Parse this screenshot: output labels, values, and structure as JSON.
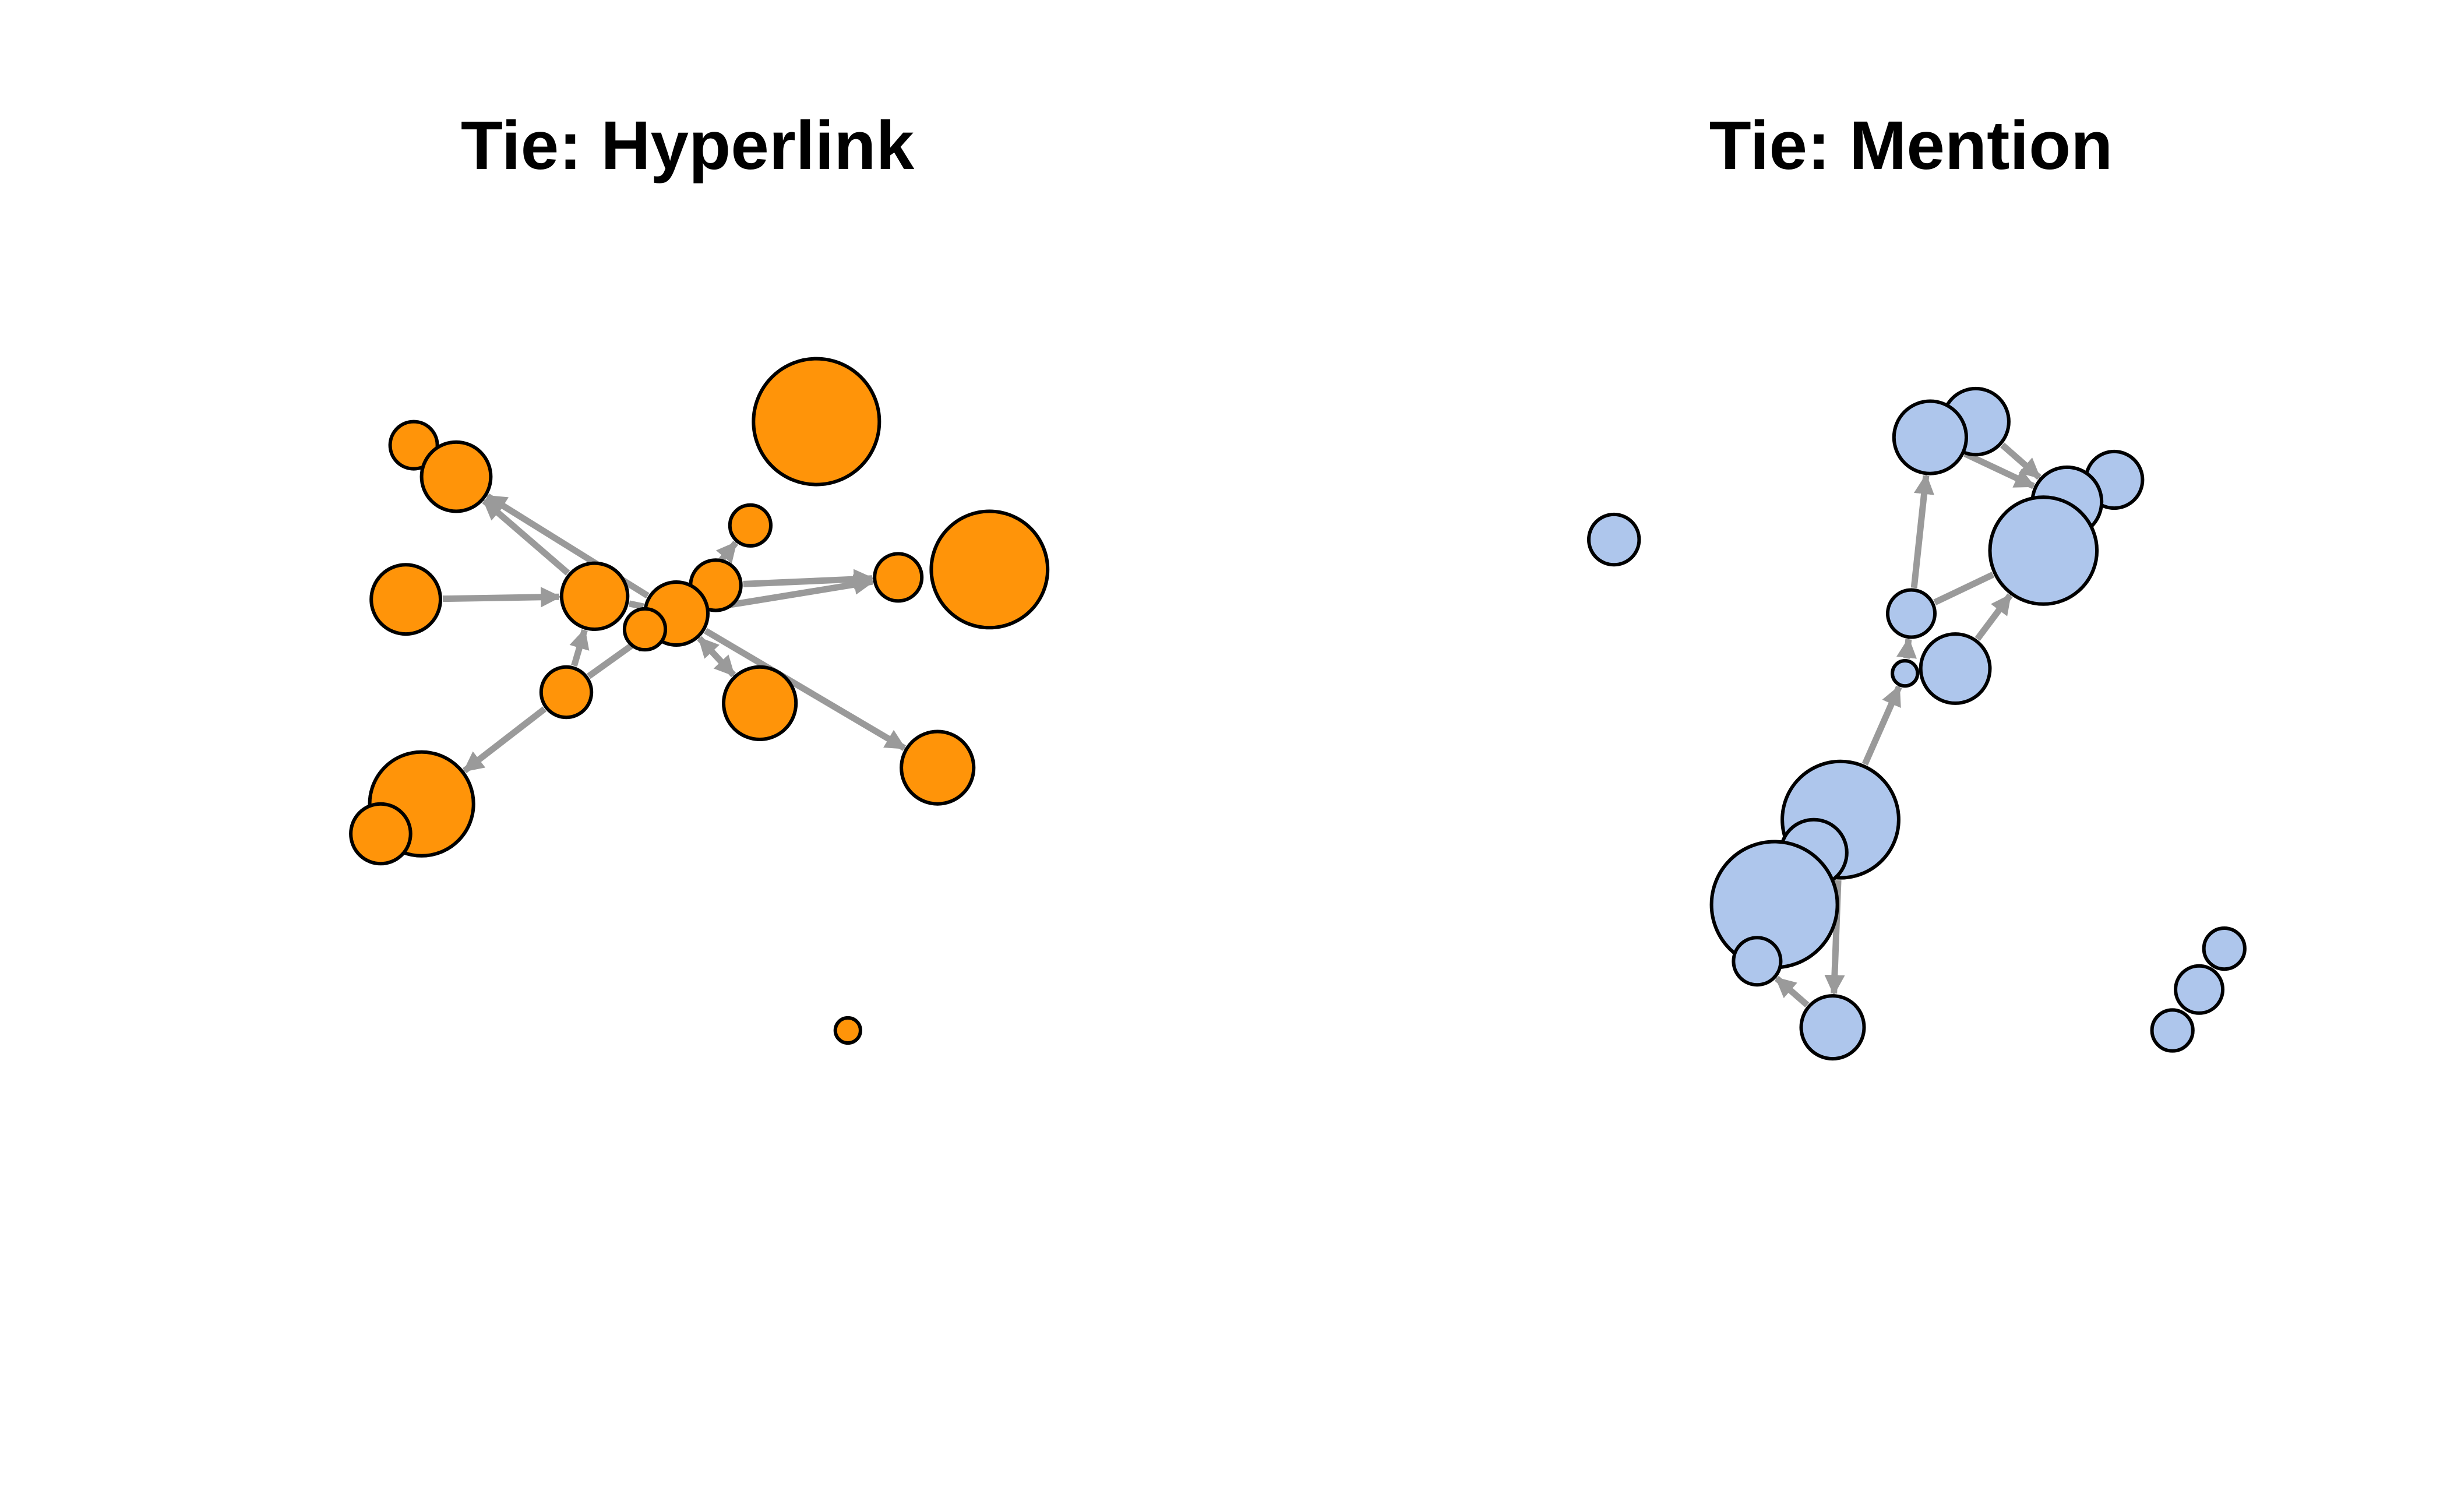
{
  "panels": [
    {
      "title": "Tie: Hyperlink",
      "node_color": "#ff9409"
    },
    {
      "title": "Tie: Mention",
      "node_color": "#aec6ec"
    }
  ],
  "edge_color": "#9a9a9a",
  "node_border_color": "#000000"
}
